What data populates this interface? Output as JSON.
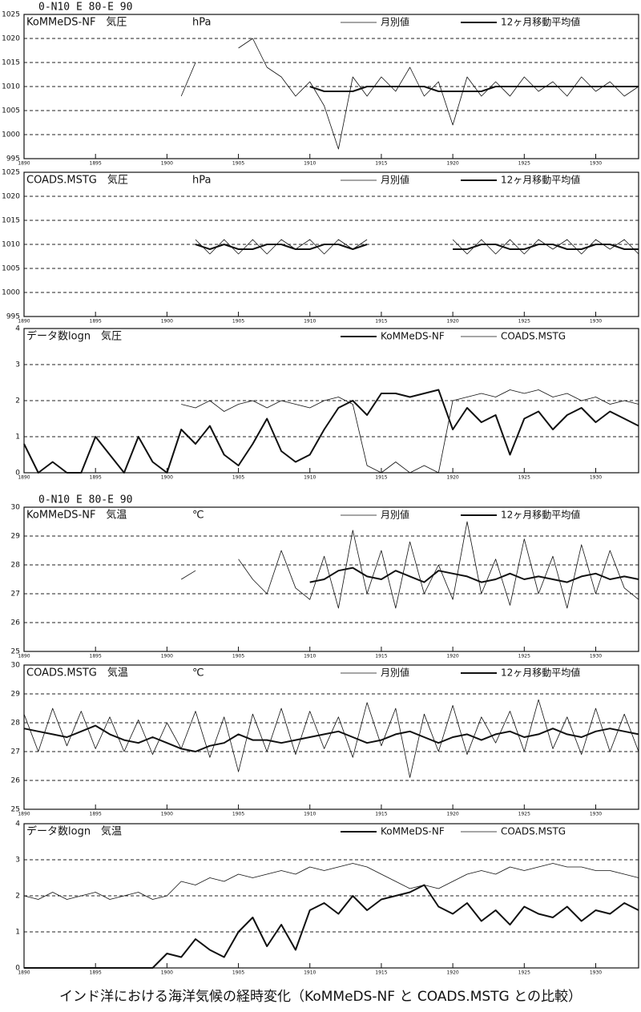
{
  "chart_data": [
    {
      "type": "line",
      "region": "0-N10 E 80-E 90",
      "title": "KoMMeDS-NF　気圧",
      "unit": "hPa",
      "x": [
        1890,
        1891,
        1892,
        1893,
        1894,
        1895,
        1896,
        1897,
        1898,
        1899,
        1900,
        1901,
        1902,
        1903,
        1904,
        1905,
        1906,
        1907,
        1908,
        1909,
        1910,
        1911,
        1912,
        1913,
        1914,
        1915,
        1916,
        1917,
        1918,
        1919,
        1920,
        1921,
        1922,
        1923,
        1924,
        1925,
        1926,
        1927,
        1928,
        1929,
        1930,
        1931,
        1932,
        1933
      ],
      "xlim": [
        1890,
        1933
      ],
      "xticks": [
        1890,
        1895,
        1900,
        1905,
        1910,
        1915,
        1920,
        1925,
        1930
      ],
      "ylim": [
        995,
        1025
      ],
      "yticks": [
        995,
        1000,
        1005,
        1010,
        1015,
        1020,
        1025
      ],
      "grid": true,
      "series": [
        {
          "name": "月別値",
          "color": "#111111",
          "line_width": 0.8,
          "values": [
            null,
            null,
            null,
            null,
            null,
            null,
            null,
            null,
            null,
            null,
            null,
            1008,
            1015,
            null,
            null,
            1018,
            1020,
            1014,
            1012,
            1008,
            1011,
            1006,
            997,
            1012,
            1008,
            1012,
            1009,
            1014,
            1008,
            1011,
            1002,
            1012,
            1008,
            1011,
            1008,
            1012,
            1009,
            1011,
            1008,
            1012,
            1009,
            1011,
            1008,
            1010
          ]
        },
        {
          "name": "12ヶ月移動平均値",
          "color": "#111111",
          "line_width": 2,
          "values": [
            null,
            null,
            null,
            null,
            null,
            null,
            null,
            null,
            null,
            null,
            null,
            null,
            null,
            null,
            null,
            null,
            null,
            null,
            null,
            null,
            1010,
            1009,
            1009,
            1009,
            1010,
            1010,
            1010,
            1010,
            1010,
            1009,
            1009,
            1009,
            1009,
            1010,
            1010,
            1010,
            1010,
            1010,
            1010,
            1010,
            1010,
            1010,
            1010,
            1010
          ]
        }
      ]
    },
    {
      "type": "line",
      "title": "COADS.MSTG　気圧",
      "unit": "hPa",
      "x": [
        1890,
        1891,
        1892,
        1893,
        1894,
        1895,
        1896,
        1897,
        1898,
        1899,
        1900,
        1901,
        1902,
        1903,
        1904,
        1905,
        1906,
        1907,
        1908,
        1909,
        1910,
        1911,
        1912,
        1913,
        1914,
        1915,
        1916,
        1917,
        1918,
        1919,
        1920,
        1921,
        1922,
        1923,
        1924,
        1925,
        1926,
        1927,
        1928,
        1929,
        1930,
        1931,
        1932,
        1933
      ],
      "xlim": [
        1890,
        1933
      ],
      "xticks": [
        1890,
        1895,
        1900,
        1905,
        1910,
        1915,
        1920,
        1925,
        1930
      ],
      "ylim": [
        995,
        1025
      ],
      "yticks": [
        995,
        1000,
        1005,
        1010,
        1015,
        1020,
        1025
      ],
      "grid": true,
      "series": [
        {
          "name": "月別値",
          "color": "#111111",
          "line_width": 0.8,
          "values": [
            null,
            null,
            null,
            null,
            null,
            null,
            null,
            null,
            null,
            null,
            null,
            null,
            1011,
            1008,
            1011,
            1008,
            1011,
            1008,
            1011,
            1009,
            1011,
            1008,
            1011,
            1009,
            1011,
            null,
            null,
            null,
            null,
            null,
            1011,
            1008,
            1011,
            1008,
            1011,
            1008,
            1011,
            1009,
            1011,
            1008,
            1011,
            1009,
            1011,
            1008
          ]
        },
        {
          "name": "12ヶ月移動平均値",
          "color": "#111111",
          "line_width": 2,
          "values": [
            null,
            null,
            null,
            null,
            null,
            null,
            null,
            null,
            null,
            null,
            null,
            null,
            1010,
            1009,
            1010,
            1009,
            1009,
            1010,
            1010,
            1009,
            1009,
            1010,
            1010,
            1009,
            1010,
            null,
            null,
            null,
            null,
            null,
            1009,
            1009,
            1010,
            1010,
            1009,
            1009,
            1010,
            1010,
            1009,
            1009,
            1010,
            1010,
            1009,
            1009
          ]
        }
      ]
    },
    {
      "type": "line",
      "title": "データ数logn　気圧",
      "x": [
        1890,
        1891,
        1892,
        1893,
        1894,
        1895,
        1896,
        1897,
        1898,
        1899,
        1900,
        1901,
        1902,
        1903,
        1904,
        1905,
        1906,
        1907,
        1908,
        1909,
        1910,
        1911,
        1912,
        1913,
        1914,
        1915,
        1916,
        1917,
        1918,
        1919,
        1920,
        1921,
        1922,
        1923,
        1924,
        1925,
        1926,
        1927,
        1928,
        1929,
        1930,
        1931,
        1932,
        1933
      ],
      "xlim": [
        1890,
        1933
      ],
      "xticks": [
        1890,
        1895,
        1900,
        1905,
        1910,
        1915,
        1920,
        1925,
        1930
      ],
      "ylim": [
        0,
        4
      ],
      "yticks": [
        0,
        1,
        2,
        3,
        4
      ],
      "grid": true,
      "series": [
        {
          "name": "KoMMeDS-NF",
          "color": "#111111",
          "line_width": 2,
          "values": [
            0.8,
            0,
            0.3,
            0,
            0,
            1,
            0.5,
            0,
            1,
            0.3,
            0,
            1.2,
            0.8,
            1.3,
            0.5,
            0.2,
            0.8,
            1.5,
            0.6,
            0.3,
            0.5,
            1.2,
            1.8,
            2,
            1.6,
            2.2,
            2.2,
            2.1,
            2.2,
            2.3,
            1.2,
            1.8,
            1.4,
            1.6,
            0.5,
            1.5,
            1.7,
            1.2,
            1.6,
            1.8,
            1.4,
            1.7,
            1.5,
            1.3
          ]
        },
        {
          "name": "COADS.MSTG",
          "color": "#111111",
          "line_width": 0.8,
          "values": [
            null,
            null,
            null,
            null,
            null,
            null,
            null,
            null,
            null,
            null,
            null,
            1.9,
            1.8,
            2,
            1.7,
            1.9,
            2,
            1.8,
            2,
            1.9,
            1.8,
            2,
            2.1,
            1.9,
            0.2,
            0,
            0.3,
            0,
            0.2,
            0,
            2,
            2.1,
            2.2,
            2.1,
            2.3,
            2.2,
            2.3,
            2.1,
            2.2,
            2,
            2.1,
            1.9,
            2,
            1.9
          ]
        }
      ]
    },
    {
      "type": "line",
      "region": "0-N10 E 80-E 90",
      "title": "KoMMeDS-NF　気温",
      "unit": "℃",
      "x": [
        1890,
        1891,
        1892,
        1893,
        1894,
        1895,
        1896,
        1897,
        1898,
        1899,
        1900,
        1901,
        1902,
        1903,
        1904,
        1905,
        1906,
        1907,
        1908,
        1909,
        1910,
        1911,
        1912,
        1913,
        1914,
        1915,
        1916,
        1917,
        1918,
        1919,
        1920,
        1921,
        1922,
        1923,
        1924,
        1925,
        1926,
        1927,
        1928,
        1929,
        1930,
        1931,
        1932,
        1933
      ],
      "xlim": [
        1890,
        1933
      ],
      "xticks": [
        1890,
        1895,
        1900,
        1905,
        1910,
        1915,
        1920,
        1925,
        1930
      ],
      "ylim": [
        25,
        30
      ],
      "yticks": [
        25,
        26,
        27,
        28,
        29,
        30
      ],
      "grid": true,
      "series": [
        {
          "name": "月別値",
          "color": "#111111",
          "line_width": 0.8,
          "values": [
            null,
            null,
            null,
            null,
            null,
            null,
            null,
            null,
            null,
            null,
            null,
            27.5,
            27.8,
            null,
            null,
            28.2,
            27.5,
            27,
            28.5,
            27.2,
            26.8,
            28.3,
            26.5,
            29.2,
            27,
            28.5,
            26.5,
            28.8,
            27,
            28,
            26.8,
            29.5,
            27,
            28.2,
            26.6,
            28.9,
            27,
            28.3,
            26.5,
            28.7,
            27,
            28.5,
            27.2,
            26.8
          ]
        },
        {
          "name": "12ヶ月移動平均値",
          "color": "#111111",
          "line_width": 2,
          "values": [
            null,
            null,
            null,
            null,
            null,
            null,
            null,
            null,
            null,
            null,
            null,
            null,
            null,
            null,
            null,
            null,
            null,
            null,
            null,
            null,
            27.4,
            27.5,
            27.8,
            27.9,
            27.6,
            27.5,
            27.8,
            27.6,
            27.4,
            27.8,
            27.7,
            27.6,
            27.4,
            27.5,
            27.7,
            27.5,
            27.6,
            27.5,
            27.4,
            27.6,
            27.7,
            27.5,
            27.6,
            27.5
          ]
        }
      ]
    },
    {
      "type": "line",
      "title": "COADS.MSTG　気温",
      "unit": "℃",
      "x": [
        1890,
        1891,
        1892,
        1893,
        1894,
        1895,
        1896,
        1897,
        1898,
        1899,
        1900,
        1901,
        1902,
        1903,
        1904,
        1905,
        1906,
        1907,
        1908,
        1909,
        1910,
        1911,
        1912,
        1913,
        1914,
        1915,
        1916,
        1917,
        1918,
        1919,
        1920,
        1921,
        1922,
        1923,
        1924,
        1925,
        1926,
        1927,
        1928,
        1929,
        1930,
        1931,
        1932,
        1933
      ],
      "xlim": [
        1890,
        1933
      ],
      "xticks": [
        1890,
        1895,
        1900,
        1905,
        1910,
        1915,
        1920,
        1925,
        1930
      ],
      "ylim": [
        25,
        30
      ],
      "yticks": [
        25,
        26,
        27,
        28,
        29,
        30
      ],
      "grid": true,
      "series": [
        {
          "name": "月別値",
          "color": "#111111",
          "line_width": 0.8,
          "values": [
            28.3,
            27,
            28.5,
            27.2,
            28.4,
            27.1,
            28.2,
            27,
            28.1,
            26.9,
            28,
            27.1,
            28.4,
            26.8,
            28.2,
            26.3,
            28.3,
            27,
            28.5,
            26.9,
            28.4,
            27.1,
            28.2,
            26.8,
            28.7,
            27.2,
            28.5,
            26.1,
            28.3,
            27,
            28.6,
            26.9,
            28.2,
            27.3,
            28.4,
            27,
            28.8,
            27.1,
            28.2,
            26.9,
            28.5,
            27,
            28.3,
            27
          ]
        },
        {
          "name": "12ヶ月移動平均値",
          "color": "#111111",
          "line_width": 2,
          "values": [
            27.8,
            27.7,
            27.6,
            27.5,
            27.7,
            27.9,
            27.6,
            27.4,
            27.3,
            27.5,
            27.3,
            27.1,
            27,
            27.2,
            27.3,
            27.6,
            27.4,
            27.4,
            27.3,
            27.4,
            27.5,
            27.6,
            27.7,
            27.5,
            27.3,
            27.4,
            27.6,
            27.7,
            27.5,
            27.3,
            27.5,
            27.6,
            27.4,
            27.6,
            27.7,
            27.5,
            27.6,
            27.8,
            27.6,
            27.5,
            27.7,
            27.8,
            27.7,
            27.6
          ]
        }
      ]
    },
    {
      "type": "line",
      "title": "データ数logn　気温",
      "x": [
        1890,
        1891,
        1892,
        1893,
        1894,
        1895,
        1896,
        1897,
        1898,
        1899,
        1900,
        1901,
        1902,
        1903,
        1904,
        1905,
        1906,
        1907,
        1908,
        1909,
        1910,
        1911,
        1912,
        1913,
        1914,
        1915,
        1916,
        1917,
        1918,
        1919,
        1920,
        1921,
        1922,
        1923,
        1924,
        1925,
        1926,
        1927,
        1928,
        1929,
        1930,
        1931,
        1932,
        1933
      ],
      "xlim": [
        1890,
        1933
      ],
      "xticks": [
        1890,
        1895,
        1900,
        1905,
        1910,
        1915,
        1920,
        1925,
        1930
      ],
      "ylim": [
        0,
        4
      ],
      "yticks": [
        0,
        1,
        2,
        3,
        4
      ],
      "grid": true,
      "series": [
        {
          "name": "KoMMeDS-NF",
          "color": "#111111",
          "line_width": 2,
          "values": [
            0,
            0,
            0,
            0,
            0,
            0,
            0,
            0,
            0,
            0,
            0.4,
            0.3,
            0.8,
            0.5,
            0.3,
            1,
            1.4,
            0.6,
            1.2,
            0.5,
            1.6,
            1.8,
            1.5,
            2,
            1.6,
            1.9,
            2,
            2.1,
            2.3,
            1.7,
            1.5,
            1.8,
            1.3,
            1.6,
            1.2,
            1.7,
            1.5,
            1.4,
            1.7,
            1.3,
            1.6,
            1.5,
            1.8,
            1.6
          ]
        },
        {
          "name": "COADS.MSTG",
          "color": "#111111",
          "line_width": 0.8,
          "values": [
            2,
            1.9,
            2.1,
            1.9,
            2,
            2.1,
            1.9,
            2,
            2.1,
            1.9,
            2,
            2.4,
            2.3,
            2.5,
            2.4,
            2.6,
            2.5,
            2.6,
            2.7,
            2.6,
            2.8,
            2.7,
            2.8,
            2.9,
            2.8,
            2.6,
            2.4,
            2.2,
            2.3,
            2.2,
            2.4,
            2.6,
            2.7,
            2.6,
            2.8,
            2.7,
            2.8,
            2.9,
            2.8,
            2.8,
            2.7,
            2.7,
            2.6,
            2.5
          ]
        }
      ]
    }
  ],
  "caption": "インド洋における海洋気候の経時変化（KoMMeDS-NF と COADS.MSTG との比較）"
}
